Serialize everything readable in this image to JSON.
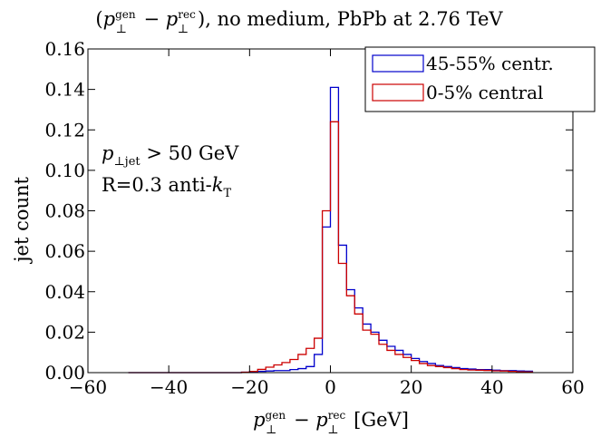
{
  "chart_data": {
    "type": "line",
    "drawstyle": "steps",
    "title": {
      "open": "(",
      "p": "p",
      "perp": "⊥",
      "gen": "gen",
      "minus": " − ",
      "rec": "rec",
      "rest": "), no medium, PbPb at 2.76 TeV"
    },
    "xlabel": {
      "p": "p",
      "perp": "⊥",
      "gen": "gen",
      "minus": " − ",
      "rec": "rec",
      "unit": " [GeV]"
    },
    "ylabel": "jet count",
    "xlim": [
      -60,
      60
    ],
    "ylim": [
      0,
      0.16
    ],
    "x_ticks": [
      "−60",
      "−40",
      "−20",
      "0",
      "20",
      "40",
      "60"
    ],
    "y_ticks": [
      "0.00",
      "0.02",
      "0.04",
      "0.06",
      "0.08",
      "0.10",
      "0.12",
      "0.14",
      "0.16"
    ],
    "grid": false,
    "legend_placement": "top-right",
    "annotations": {
      "line1": {
        "p": "p",
        "sub": "⊥jet",
        "rest": " > 50 GeV"
      },
      "line2": {
        "pre": "R=0.3 anti-",
        "k": "k",
        "sub": "T"
      }
    },
    "bin_edges": [
      -50,
      -48,
      -46,
      -44,
      -42,
      -40,
      -38,
      -36,
      -34,
      -32,
      -30,
      -28,
      -26,
      -24,
      -22,
      -20,
      -18,
      -16,
      -14,
      -12,
      -10,
      -8,
      -6,
      -4,
      -2,
      0,
      2,
      4,
      6,
      8,
      10,
      12,
      14,
      16,
      18,
      20,
      22,
      24,
      26,
      28,
      30,
      32,
      34,
      36,
      38,
      40,
      42,
      44,
      46,
      48,
      50
    ],
    "series": [
      {
        "name": "45-55% centr.",
        "color": "#0000cc",
        "values": [
          0,
          0,
          0,
          0,
          0,
          0,
          0,
          0,
          0,
          0,
          0,
          0,
          0,
          0,
          0.0002,
          0.0004,
          0.0006,
          0.0008,
          0.001,
          0.001,
          0.0015,
          0.002,
          0.003,
          0.009,
          0.072,
          0.141,
          0.063,
          0.041,
          0.032,
          0.024,
          0.02,
          0.016,
          0.013,
          0.011,
          0.009,
          0.007,
          0.0055,
          0.0045,
          0.0035,
          0.003,
          0.0025,
          0.002,
          0.0018,
          0.0015,
          0.0015,
          0.0012,
          0.001,
          0.001,
          0.0008,
          0.0007
        ]
      },
      {
        "name": "0-5% central",
        "color": "#cc0000",
        "values": [
          0,
          0,
          0,
          0,
          0,
          0,
          0,
          0,
          0,
          0,
          0,
          0,
          0,
          0,
          0.0002,
          0.0006,
          0.0016,
          0.0027,
          0.0038,
          0.005,
          0.0065,
          0.009,
          0.012,
          0.017,
          0.08,
          0.124,
          0.054,
          0.038,
          0.029,
          0.021,
          0.019,
          0.014,
          0.011,
          0.009,
          0.0075,
          0.006,
          0.0045,
          0.0035,
          0.003,
          0.0025,
          0.002,
          0.0015,
          0.0013,
          0.0012,
          0.0011,
          0.0009,
          0.0008,
          0.0006,
          0.0004,
          0.0003
        ]
      }
    ]
  }
}
